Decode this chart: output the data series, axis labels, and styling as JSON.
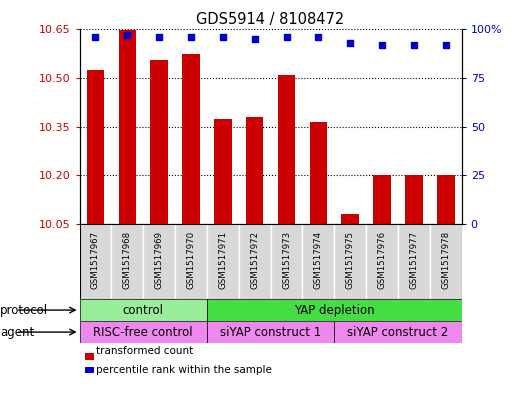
{
  "title": "GDS5914 / 8108472",
  "samples": [
    "GSM1517967",
    "GSM1517968",
    "GSM1517969",
    "GSM1517970",
    "GSM1517971",
    "GSM1517972",
    "GSM1517973",
    "GSM1517974",
    "GSM1517975",
    "GSM1517976",
    "GSM1517977",
    "GSM1517978"
  ],
  "bar_values": [
    10.525,
    10.648,
    10.555,
    10.575,
    10.375,
    10.38,
    10.51,
    10.365,
    10.08,
    10.2,
    10.2,
    10.2
  ],
  "dot_values": [
    96,
    97,
    96,
    96,
    96,
    95,
    96,
    96,
    93,
    92,
    92,
    92
  ],
  "ylim_left": [
    10.05,
    10.65
  ],
  "ylim_right": [
    0,
    100
  ],
  "yticks_left": [
    10.05,
    10.2,
    10.35,
    10.5,
    10.65
  ],
  "yticks_right": [
    0,
    25,
    50,
    75,
    100
  ],
  "bar_color": "#cc0000",
  "dot_color": "#0000cc",
  "bar_bottom": 10.05,
  "protocol_labels": [
    {
      "text": "control",
      "start": 0,
      "end": 3,
      "color": "#99ee99"
    },
    {
      "text": "YAP depletion",
      "start": 4,
      "end": 11,
      "color": "#44dd44"
    }
  ],
  "agent_labels": [
    {
      "text": "RISC-free control",
      "start": 0,
      "end": 3,
      "color": "#ee88ee"
    },
    {
      "text": "siYAP construct 1",
      "start": 4,
      "end": 7,
      "color": "#ee88ee"
    },
    {
      "text": "siYAP construct 2",
      "start": 8,
      "end": 11,
      "color": "#ee88ee"
    }
  ],
  "protocol_row_label": "protocol",
  "agent_row_label": "agent",
  "legend_bar_label": "transformed count",
  "legend_dot_label": "percentile rank within the sample",
  "tick_label_color_left": "#cc0000",
  "tick_label_color_right": "#0000cc",
  "sample_box_color": "#d8d8d8",
  "ytick_labels_right": [
    "0",
    "25",
    "50",
    "75",
    "100%"
  ]
}
